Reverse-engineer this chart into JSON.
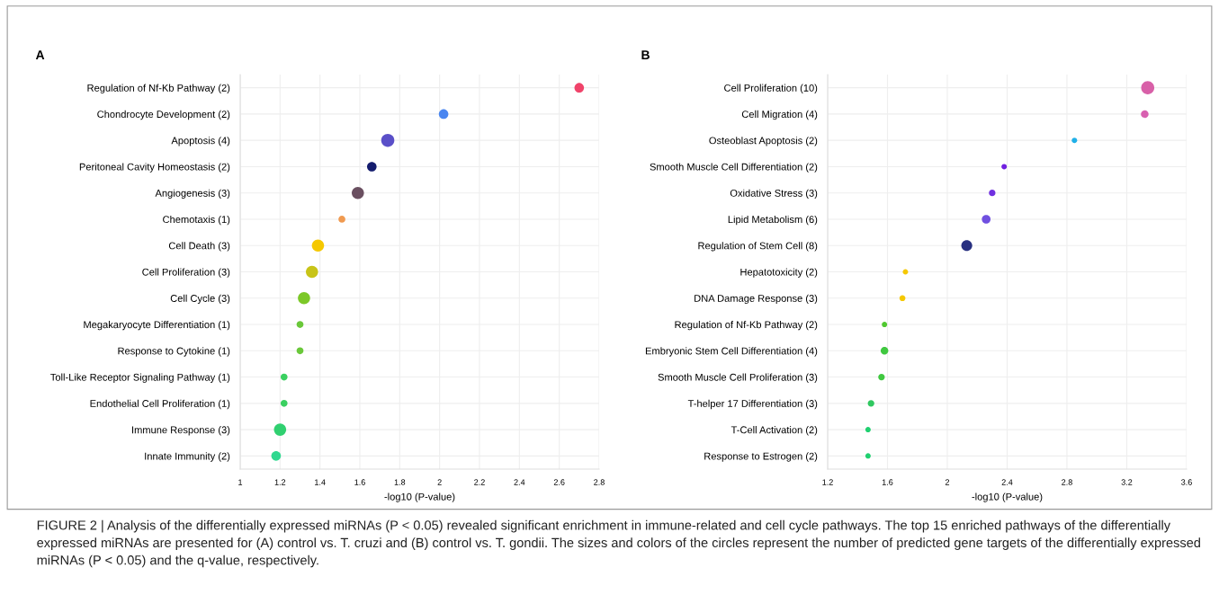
{
  "chart_data": [
    {
      "type": "bubble",
      "title": "A",
      "xlabel": "-log10 (P-value)",
      "orientation": "horizontal",
      "grid": true,
      "legend": false,
      "categories": [
        "Regulation of Nf-Kb Pathway (2)",
        "Chondrocyte Development (2)",
        "Apoptosis (4)",
        "Peritoneal Cavity Homeostasis (2)",
        "Angiogenesis (3)",
        "Chemotaxis (1)",
        "Cell Death (3)",
        "Cell Proliferation (3)",
        "Cell Cycle (3)",
        "Megakaryocyte Differentiation (1)",
        "Response to Cytokine (1)",
        "Toll-Like Receptor Signaling Pathway (1)",
        "Endothelial Cell Proliferation (1)",
        "Immune Response (3)",
        "Innate Immunity (2)"
      ],
      "values": [
        2.7,
        2.02,
        1.74,
        1.66,
        1.59,
        1.51,
        1.39,
        1.36,
        1.32,
        1.3,
        1.3,
        1.22,
        1.22,
        1.2,
        1.18
      ],
      "sizes": [
        0.53,
        0.53,
        1,
        0.53,
        0.87,
        0.28,
        0.87,
        0.87,
        0.87,
        0.28,
        0.28,
        0.28,
        0.28,
        0.87,
        0.53
      ],
      "colors": [
        "#f0436a",
        "#4a86f0",
        "#5a4fc8",
        "#141c6e",
        "#6a4f60",
        "#f09a50",
        "#f5c800",
        "#c8c418",
        "#7cc828",
        "#6ac83a",
        "#6ac83a",
        "#3ad060",
        "#3ad060",
        "#30d070",
        "#30d890"
      ],
      "xlim": [
        1,
        2.8
      ],
      "xticks": [
        1,
        1.2,
        1.4,
        1.6,
        1.8,
        2,
        2.2,
        2.4,
        2.6,
        2.8
      ],
      "annotations": [
        "FIGURE 2 | Analysis of the differentially expressed miRNAs (P < 0.05) revealed significant enrichment in immune-related and cell cycle pathways. The top 15 enriched pathways of the differentially expressed miRNAs are presented for (A) control vs. T. cruzi and (B) control vs. T. gondii. The sizes and colors of the circles represent the number of predicted gene targets of the differentially expressed miRNAs (P < 0.05) and the q-value, respectively."
      ]
    },
    {
      "type": "bubble",
      "title": "B",
      "xlabel": "-log10 (P-value)",
      "orientation": "horizontal",
      "grid": true,
      "legend": false,
      "categories": [
        "Cell Proliferation (10)",
        "Cell Migration (4)",
        "Osteoblast Apoptosis (2)",
        "Smooth Muscle Cell Differentiation (2)",
        "Oxidative Stress (3)",
        "Lipid Metabolism (6)",
        "Regulation of Stem Cell (8)",
        "Hepatotoxicity (2)",
        "DNA Damage Response (3)",
        "Regulation of Nf-Kb Pathway (2)",
        "Embryonic Stem Cell Differentiation (4)",
        "Smooth Muscle Cell Proliferation (3)",
        "T-helper 17 Differentiation (3)",
        "T-Cell Activation (2)",
        "Response to Estrogen (2)"
      ],
      "values": [
        3.34,
        3.32,
        2.85,
        2.38,
        2.3,
        2.26,
        2.13,
        1.72,
        1.7,
        1.58,
        1.58,
        1.56,
        1.49,
        1.47,
        1.47
      ],
      "sizes": [
        1,
        0.34,
        0.17,
        0.17,
        0.25,
        0.44,
        0.69,
        0.17,
        0.21,
        0.17,
        0.34,
        0.25,
        0.25,
        0.17,
        0.17
      ],
      "colors": [
        "#d860a8",
        "#d860b0",
        "#20b0e8",
        "#7020e0",
        "#7030e0",
        "#7050e0",
        "#283080",
        "#f5c800",
        "#f5c800",
        "#50c830",
        "#40c840",
        "#40c840",
        "#30c860",
        "#20d070",
        "#20d070"
      ],
      "xlim": [
        1.2,
        3.6
      ],
      "xticks": [
        1.2,
        1.6,
        2,
        2.4,
        2.8,
        3.2,
        3.6
      ]
    }
  ]
}
